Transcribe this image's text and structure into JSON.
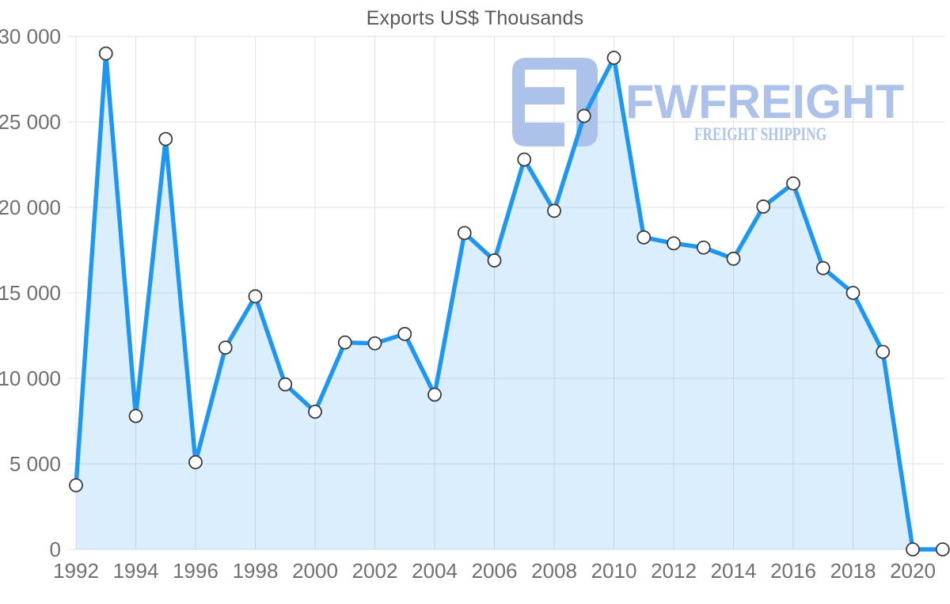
{
  "chart_data": {
    "type": "area",
    "title": "Exports US$ Thousands",
    "xlabel": "",
    "ylabel": "",
    "x": [
      1992,
      1993,
      1994,
      1995,
      1996,
      1997,
      1998,
      1999,
      2000,
      2001,
      2002,
      2003,
      2004,
      2005,
      2006,
      2007,
      2008,
      2009,
      2010,
      2011,
      2012,
      2013,
      2014,
      2015,
      2016,
      2017,
      2018,
      2019,
      2020,
      2021
    ],
    "values": [
      3750,
      29000,
      7800,
      24000,
      5100,
      11800,
      14800,
      9650,
      8050,
      12100,
      12050,
      12600,
      9050,
      18500,
      16900,
      22800,
      19800,
      25350,
      28750,
      18250,
      17900,
      17650,
      17000,
      20050,
      21400,
      16450,
      15000,
      11550,
      0,
      0
    ],
    "series_name": "Exports US$ Thousands",
    "ylim": [
      0,
      30000
    ],
    "yticks": [
      0,
      5000,
      10000,
      15000,
      20000,
      25000,
      30000
    ],
    "ytick_labels": [
      "0",
      "5 000",
      "10 000",
      "15 000",
      "20 000",
      "25 000",
      "30 000"
    ],
    "xticks": [
      1992,
      1994,
      1996,
      1998,
      2000,
      2002,
      2004,
      2006,
      2008,
      2010,
      2012,
      2014,
      2016,
      2018,
      2020
    ],
    "grid": true,
    "legend": false,
    "line_color": "#1e96f3",
    "fill_color": "rgba(30,150,243,0.16)",
    "marker_fill": "#ffffff",
    "marker_stroke": "#3c3c3c",
    "grid_color": "#e2e2e2",
    "tick_label_color": "#707070"
  },
  "watermark": {
    "brand": "FWFREIGHT",
    "tagline": "FREIGHT SHIPPING",
    "color": "#a9bfe9",
    "tagline_color": "#aac1ec"
  }
}
